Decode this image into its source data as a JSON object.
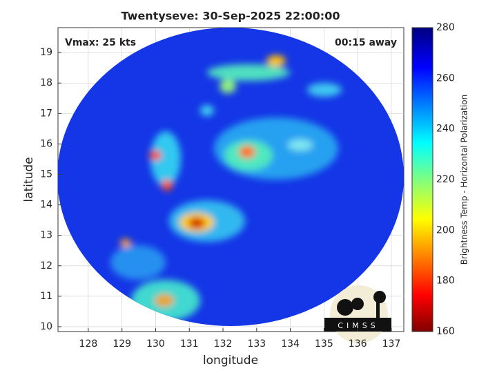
{
  "chart_data": {
    "type": "map",
    "title": "Twentyseve: 30-Sep-2025 22:00:00",
    "annotations": [
      "Vmax: 25 kts",
      "00:15 away"
    ],
    "xlabel": "longitude",
    "ylabel": "latitude",
    "xlim": [
      127.1,
      137.37
    ],
    "ylim": [
      9.84,
      19.82
    ],
    "xticks": [
      128,
      129,
      130,
      131,
      132,
      133,
      134,
      135,
      136,
      137
    ],
    "yticks": [
      10,
      11,
      12,
      13,
      14,
      15,
      16,
      17,
      18,
      19
    ],
    "grid": true,
    "colorbar": {
      "label": "Brightness Temp - Horizontal Polarization",
      "lim": [
        160,
        280
      ],
      "ticks": [
        160,
        180,
        200,
        220,
        240,
        260,
        280
      ]
    },
    "logo": "CIMSS"
  }
}
